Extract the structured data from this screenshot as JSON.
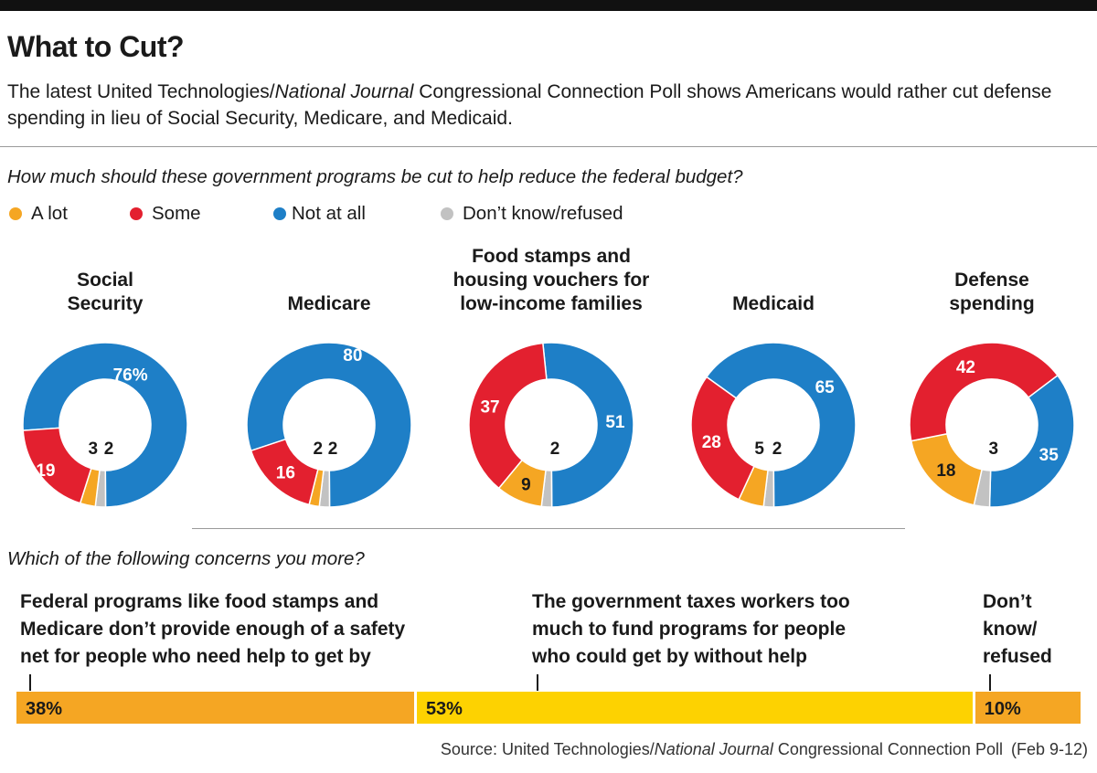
{
  "header": {
    "title": "What to Cut?",
    "subtitle_prefix": "The latest United Technologies/",
    "subtitle_italic": "National Journal",
    "subtitle_suffix": " Congressional Connection Poll shows Americans would rather cut defense spending in lieu of Social Security, Medicare, and Medicaid."
  },
  "colors": {
    "a_lot": "#f5a623",
    "some": "#e3202f",
    "not_at_all": "#1e7fc7",
    "dont_know": "#c2c2c2",
    "bar_yellow": "#fdd201"
  },
  "chart_data": [
    {
      "type": "pie",
      "donut": true,
      "question": "How much should these government programs be cut to help reduce the federal budget?",
      "legend": [
        "A lot",
        "Some",
        "Not at all",
        "Don’t know/refused"
      ],
      "charts": [
        {
          "title": [
            "Social",
            "Security"
          ],
          "values": {
            "a_lot": 3,
            "some": 19,
            "not_at_all": 76,
            "dont_know": 2
          },
          "labels": {
            "a_lot": "3",
            "some": "19",
            "not_at_all": "76%",
            "dont_know": "2"
          }
        },
        {
          "title": [
            "Medicare"
          ],
          "values": {
            "a_lot": 2,
            "some": 16,
            "not_at_all": 80,
            "dont_know": 2
          },
          "labels": {
            "a_lot": "2",
            "some": "16",
            "not_at_all": "80",
            "dont_know": "2"
          }
        },
        {
          "title": [
            "Food stamps and",
            "housing vouchers for",
            "low-income families"
          ],
          "values": {
            "a_lot": 9,
            "some": 37,
            "not_at_all": 51,
            "dont_know": 2
          },
          "labels": {
            "a_lot": "9",
            "some": "37",
            "not_at_all": "51",
            "dont_know": "2"
          }
        },
        {
          "title": [
            "Medicaid"
          ],
          "values": {
            "a_lot": 5,
            "some": 28,
            "not_at_all": 65,
            "dont_know": 2
          },
          "labels": {
            "a_lot": "5",
            "some": "28",
            "not_at_all": "65",
            "dont_know": "2"
          }
        },
        {
          "title": [
            "Defense",
            "spending"
          ],
          "values": {
            "a_lot": 18,
            "some": 42,
            "not_at_all": 35,
            "dont_know": 3
          },
          "labels": {
            "a_lot": "18",
            "some": "42",
            "not_at_all": "35",
            "dont_know": "3"
          }
        }
      ]
    },
    {
      "type": "bar",
      "stacked": true,
      "question": "Which of the following concerns you more?",
      "categories": [
        "Federal programs like food stamps and Medicare don’t provide enough of a safety net for people who need help to get by",
        "The government taxes workers too much to fund programs for people who could get by without help",
        "Don’t know/ refused"
      ],
      "category_lines": [
        [
          "Federal programs like food stamps and",
          "Medicare don’t provide enough of a safety",
          "net for people who need help to get by"
        ],
        [
          "The government taxes workers too",
          "much to fund programs for people",
          "who could get by without help"
        ],
        [
          "Don’t",
          "know/",
          "refused"
        ]
      ],
      "values": [
        38,
        53,
        10
      ],
      "value_labels": [
        "38%",
        "53%",
        "10%"
      ]
    }
  ],
  "source": {
    "prefix": "Source: United Technologies/",
    "italic": "National Journal",
    "suffix": " Congressional Connection Poll (Feb 9-12)"
  }
}
